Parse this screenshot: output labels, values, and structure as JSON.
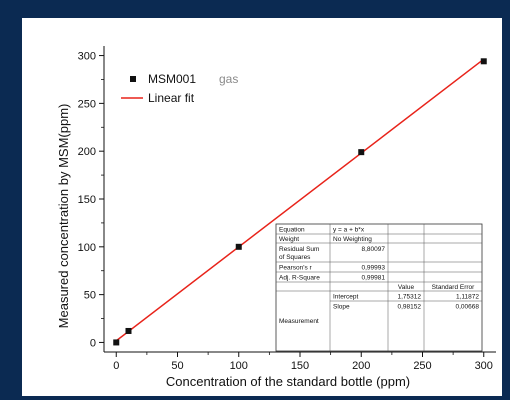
{
  "chart_data": {
    "type": "scatter",
    "xlabel": "Concentration of the standard bottle (ppm)",
    "ylabel": "Measured concentration by MSM(ppm)",
    "xlim": [
      -10,
      310
    ],
    "ylim": [
      -10,
      310
    ],
    "xticks": [
      "0",
      "50",
      "100",
      "150",
      "200",
      "250",
      "300"
    ],
    "yticks": [
      "0",
      "50",
      "100",
      "150",
      "200",
      "250",
      "300"
    ],
    "xtick_values": [
      0,
      50,
      100,
      150,
      200,
      250,
      300
    ],
    "ytick_values": [
      0,
      50,
      100,
      150,
      200,
      250,
      300
    ],
    "grid": false,
    "legend_position": "top-left",
    "series": [
      {
        "name": "MSM001",
        "kind": "scatter",
        "marker": "square",
        "color": "#111111",
        "x": [
          0,
          10,
          100,
          200,
          300
        ],
        "y": [
          0,
          12,
          100,
          199,
          294
        ]
      },
      {
        "name": "Linear fit",
        "kind": "line",
        "color": "#e8231a",
        "intercept": 1.75312,
        "slope": 0.98152,
        "x_range": [
          0,
          300
        ]
      }
    ],
    "legend_note": "gas",
    "fit_table": {
      "equation_label": "Equation",
      "equation_value": "y = a + b*x",
      "weight_label": "Weight",
      "weight_value": "No Weighting",
      "rss_label_line1": "Residual Sum",
      "rss_label_line2": "of Squares",
      "rss_value": "8,80097",
      "pearson_label": "Pearson's r",
      "pearson_value": "0,99993",
      "adjr2_label": "Adj. R-Square",
      "adjr2_value": "0,99981",
      "value_header": "Value",
      "stderr_header": "Standard Error",
      "measurement_label": "Measurement",
      "intercept_label": "Intercept",
      "intercept_value": "1,75312",
      "intercept_error": "1,11872",
      "slope_label": "Slope",
      "slope_value": "0,98152",
      "slope_error": "0,00668"
    }
  }
}
